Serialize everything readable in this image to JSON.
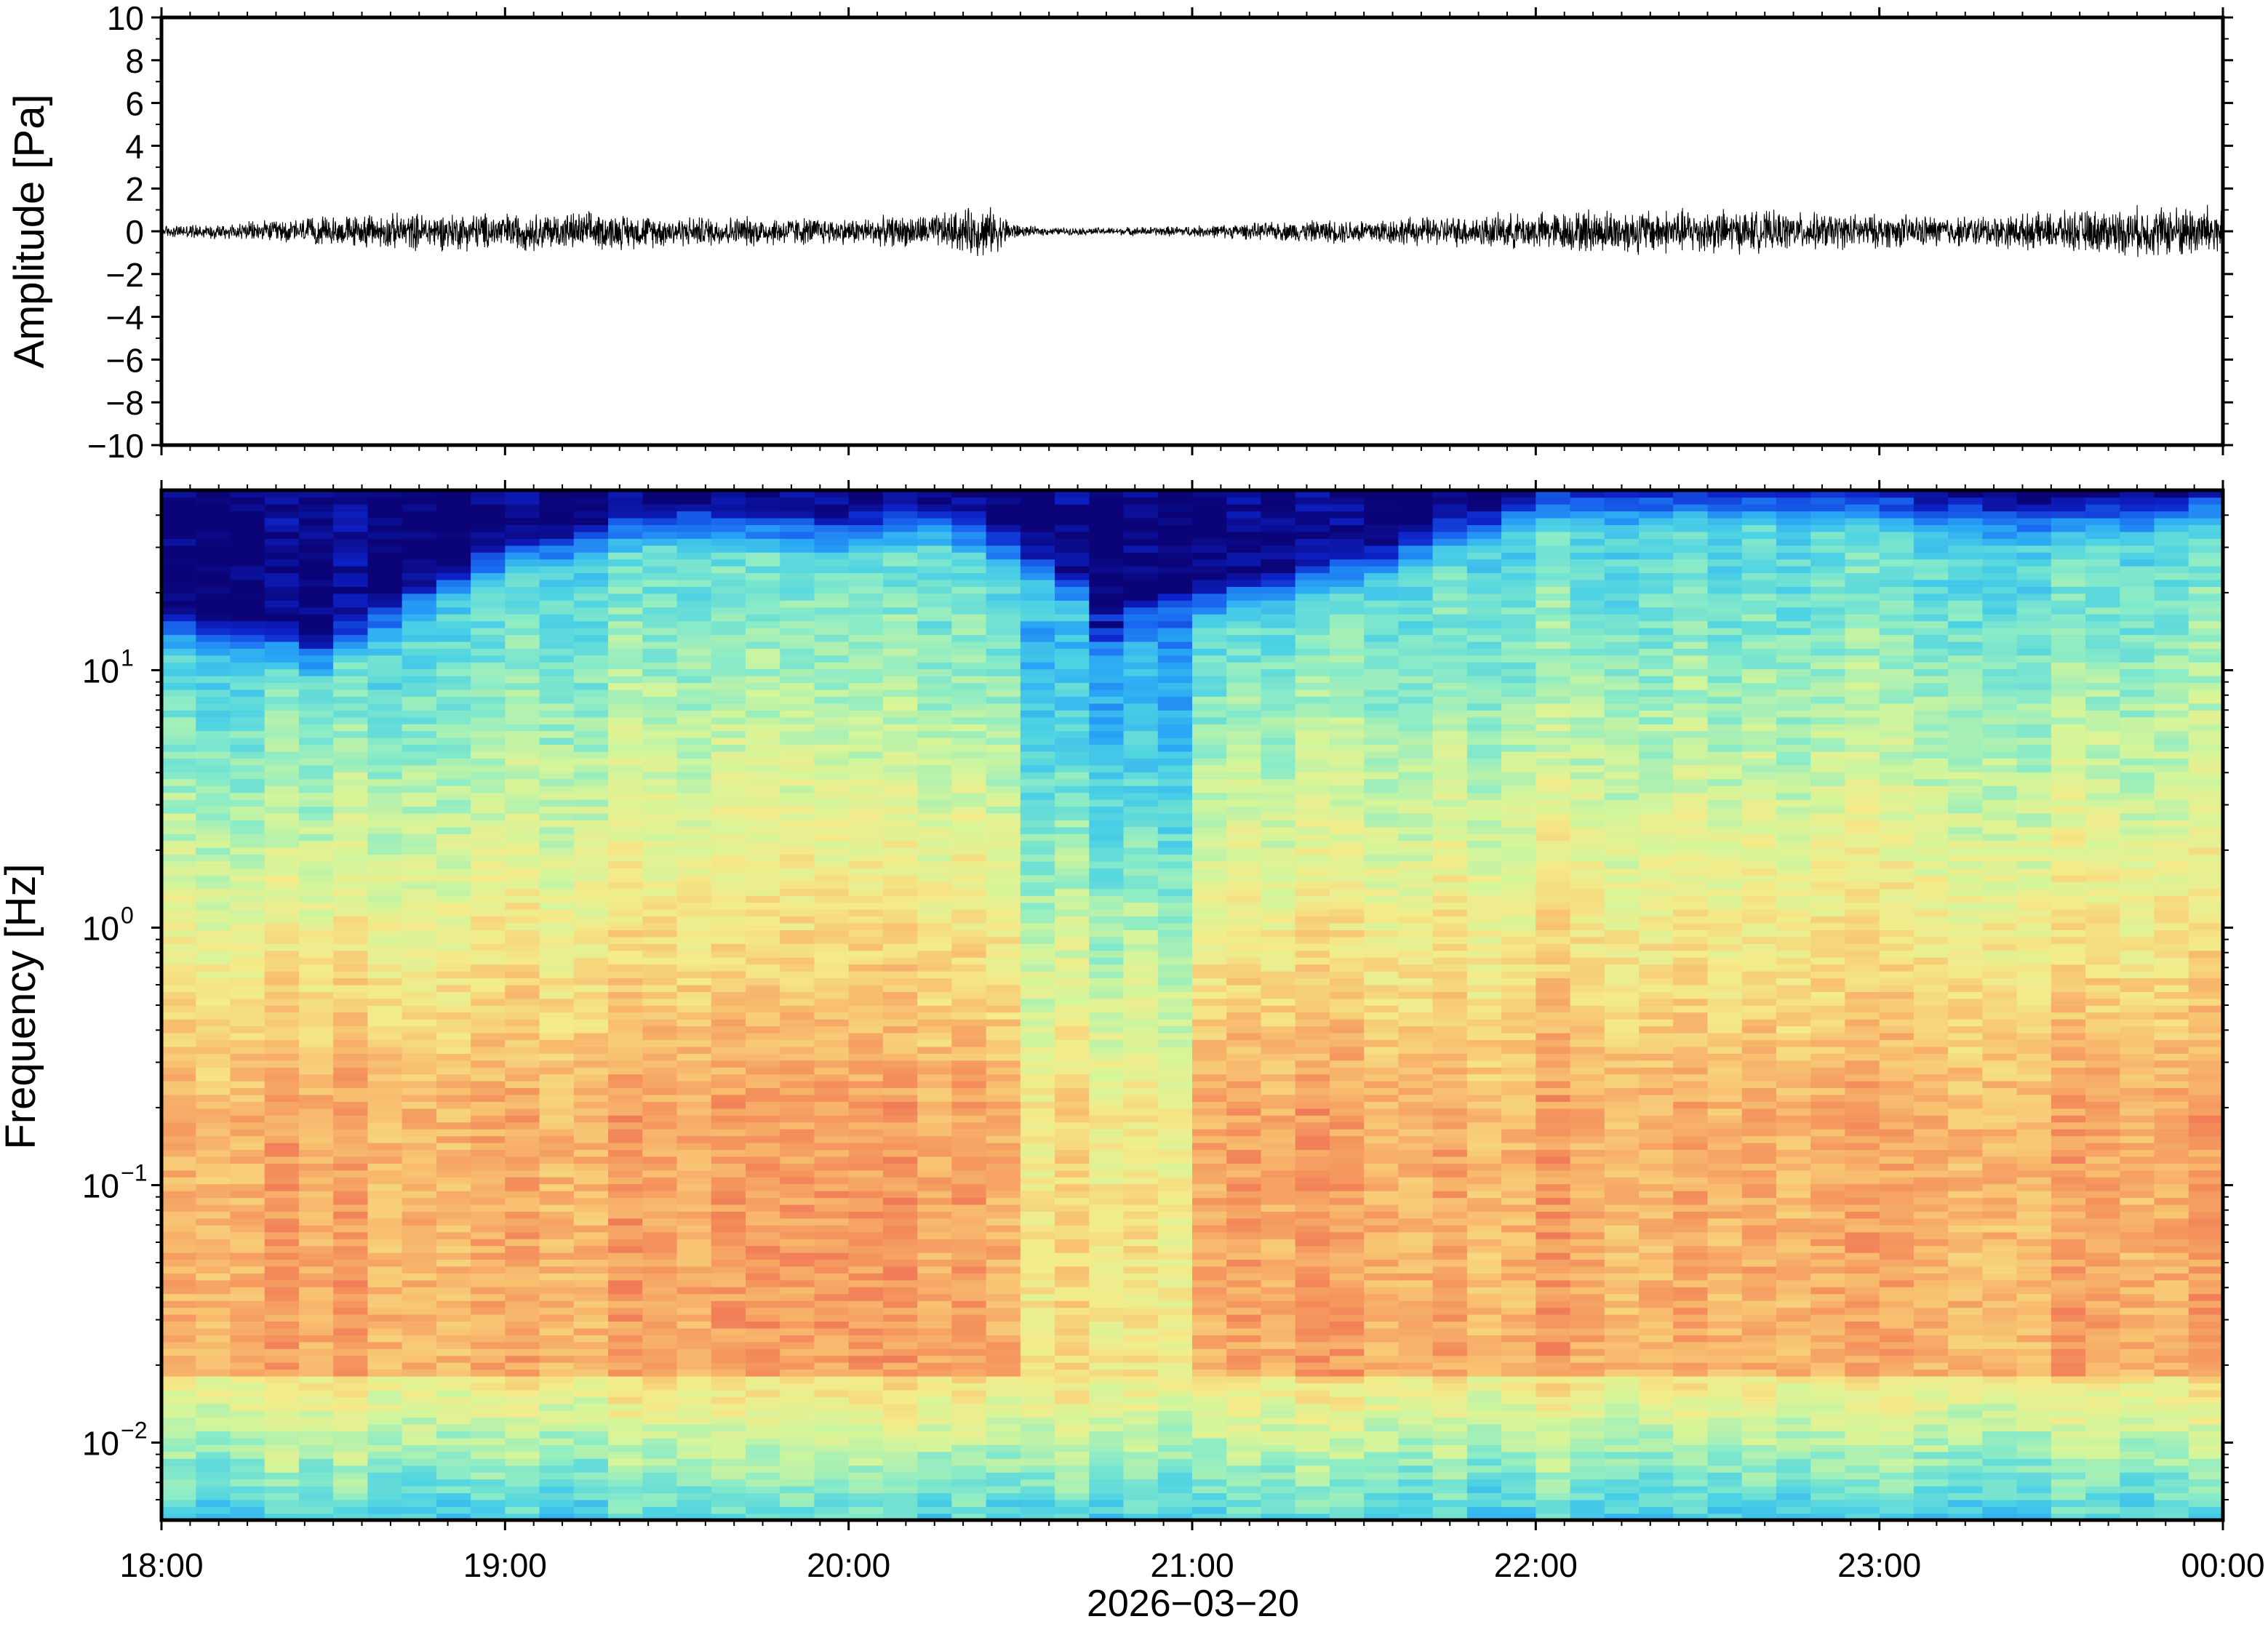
{
  "chart_data": [
    {
      "type": "line",
      "panel": "waveform",
      "ylabel": "Amplitude [Pa]",
      "ylim": [
        -10,
        10
      ],
      "yticks": [
        10,
        8,
        6,
        4,
        2,
        0,
        -2,
        -4,
        -6,
        -8,
        -10
      ],
      "ytick_labels": [
        "10",
        "8",
        "6",
        "4",
        "2",
        "0",
        "−2",
        "−4",
        "−6",
        "−8",
        "−10"
      ],
      "x_range": [
        "18:00",
        "00:00"
      ],
      "line_color": "#000000",
      "envelope": {
        "times_h": [
          0.0,
          0.25,
          0.5,
          0.75,
          1.0,
          1.25,
          1.5,
          1.75,
          2.0,
          2.25,
          2.4,
          2.5,
          2.6,
          2.75,
          3.0,
          3.25,
          3.5,
          3.75,
          4.0,
          4.25,
          4.5,
          4.75,
          5.0,
          5.25,
          5.5,
          5.75,
          6.0
        ],
        "amplitude_pa": [
          0.3,
          0.5,
          0.8,
          1.0,
          1.0,
          1.0,
          0.8,
          0.8,
          0.7,
          0.9,
          1.4,
          0.3,
          0.2,
          0.2,
          0.3,
          0.5,
          0.7,
          0.8,
          1.0,
          1.2,
          1.2,
          1.0,
          0.9,
          0.8,
          1.0,
          1.3,
          1.5
        ]
      },
      "peaks": [
        {
          "time_h": 1.25,
          "amplitude_pa": 1.3
        },
        {
          "time_h": 2.35,
          "amplitude_pa": 1.3
        },
        {
          "time_h": 4.15,
          "amplitude_pa": 1.6
        },
        {
          "time_h": 4.5,
          "amplitude_pa": 1.3
        },
        {
          "time_h": 5.85,
          "amplitude_pa": 1.4
        }
      ]
    },
    {
      "type": "heatmap",
      "panel": "spectrogram",
      "ylabel": "Frequency [Hz]",
      "yscale": "log",
      "ylim": [
        0.005,
        50
      ],
      "ytick_base": "10",
      "ytick_exponents": [
        "1",
        "0",
        "−1",
        "−2"
      ],
      "xlabel": "2026−03−20",
      "xtick_labels": [
        "18:00",
        "19:00",
        "20:00",
        "21:00",
        "22:00",
        "23:00",
        "00:00"
      ],
      "colormap": "jet",
      "colormap_stops": [
        "#0a0478",
        "#0d22c8",
        "#1a6af0",
        "#2aa8f5",
        "#4dd2e4",
        "#8cecc6",
        "#d4f59a",
        "#f4eb8a",
        "#f8c070",
        "#f4905c",
        "#e8504c"
      ],
      "x_hours": [
        0.0,
        0.5,
        1.0,
        1.5,
        2.0,
        2.25,
        2.5,
        2.75,
        3.0,
        3.5,
        4.0,
        4.5,
        5.0,
        5.5,
        6.0
      ],
      "noise_floor_top_hz": [
        12,
        9,
        22,
        30,
        26,
        30,
        22,
        12,
        14,
        20,
        34,
        36,
        34,
        30,
        34
      ],
      "quiet_interval_h": [
        2.5,
        3.0
      ],
      "energy_peak_band_hz": [
        0.03,
        0.2
      ]
    }
  ]
}
